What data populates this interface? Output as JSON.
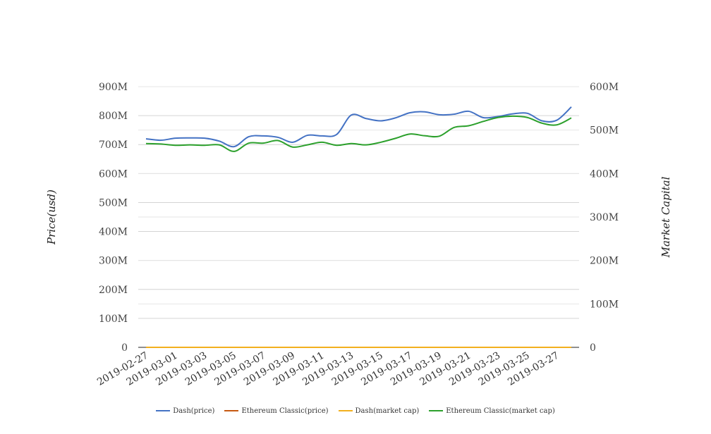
{
  "chart_data": {
    "type": "line",
    "x": [
      "2019-02-27",
      "2019-02-28",
      "2019-03-01",
      "2019-03-02",
      "2019-03-03",
      "2019-03-04",
      "2019-03-05",
      "2019-03-06",
      "2019-03-07",
      "2019-03-08",
      "2019-03-09",
      "2019-03-10",
      "2019-03-11",
      "2019-03-12",
      "2019-03-13",
      "2019-03-14",
      "2019-03-15",
      "2019-03-16",
      "2019-03-17",
      "2019-03-18",
      "2019-03-19",
      "2019-03-20",
      "2019-03-21",
      "2019-03-22",
      "2019-03-23",
      "2019-03-24",
      "2019-03-25",
      "2019-03-26",
      "2019-03-27",
      "2019-03-28"
    ],
    "x_tick_labels": [
      "2019-02-27",
      "2019-03-01",
      "2019-03-03",
      "2019-03-05",
      "2019-03-07",
      "2019-03-09",
      "2019-03-11",
      "2019-03-13",
      "2019-03-15",
      "2019-03-17",
      "2019-03-19",
      "2019-03-21",
      "2019-03-23",
      "2019-03-25",
      "2019-03-27"
    ],
    "y_left": {
      "label": "Price(usd)",
      "range": [
        0,
        900000000
      ],
      "ticks": [
        "0",
        "100M",
        "200M",
        "300M",
        "400M",
        "500M",
        "600M",
        "700M",
        "800M",
        "900M"
      ]
    },
    "y_right": {
      "label": "Market Capital",
      "range": [
        0,
        600000000
      ],
      "ticks": [
        "0",
        "100M",
        "200M",
        "300M",
        "400M",
        "500M",
        "600M"
      ]
    },
    "grid": true,
    "legend_position": "bottom",
    "series": [
      {
        "name": "Dash(price)",
        "axis": "left",
        "color": "#4472c4",
        "values": [
          720000000,
          715000000,
          722000000,
          723000000,
          722000000,
          712000000,
          693000000,
          727000000,
          730000000,
          725000000,
          708000000,
          732000000,
          730000000,
          735000000,
          802000000,
          790000000,
          782000000,
          792000000,
          810000000,
          813000000,
          803000000,
          805000000,
          815000000,
          793000000,
          797000000,
          806000000,
          808000000,
          782000000,
          784000000,
          830000000
        ]
      },
      {
        "name": "Ethereum Classic(price)",
        "axis": "left",
        "color": "#c65911",
        "values": [
          4.1,
          4.2,
          4.1,
          4.1,
          4.2,
          4.1,
          4.0,
          4.1,
          4.2,
          4.2,
          4.1,
          4.2,
          4.2,
          4.2,
          4.3,
          4.3,
          4.3,
          4.4,
          4.5,
          4.5,
          4.4,
          4.5,
          4.6,
          4.7,
          4.7,
          4.8,
          4.8,
          4.7,
          4.7,
          4.8
        ]
      },
      {
        "name": "Dash(market cap)",
        "axis": "right",
        "color": "#f2b01e",
        "values": [
          0,
          0,
          0,
          0,
          0,
          0,
          0,
          0,
          0,
          0,
          0,
          0,
          0,
          0,
          0,
          0,
          0,
          0,
          0,
          0,
          0,
          0,
          0,
          0,
          0,
          0,
          0,
          0,
          0,
          0
        ]
      },
      {
        "name": "Ethereum Classic(market cap)",
        "axis": "right",
        "color": "#2ca02c",
        "values": [
          469000000,
          468000000,
          465000000,
          466000000,
          465000000,
          466000000,
          451000000,
          470000000,
          470000000,
          476000000,
          461000000,
          466000000,
          472000000,
          465000000,
          469000000,
          466000000,
          472000000,
          481000000,
          491000000,
          487000000,
          486000000,
          506000000,
          510000000,
          520000000,
          529000000,
          532000000,
          529000000,
          516000000,
          512000000,
          528000000
        ]
      }
    ]
  }
}
